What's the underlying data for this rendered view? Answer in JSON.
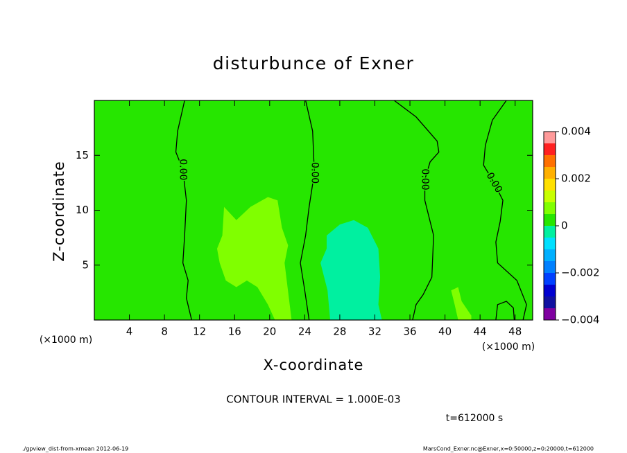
{
  "chart_data": {
    "type": "contour",
    "title": "disturbunce of Exner",
    "x_label": "X-coordinate",
    "y_label": "Z-coordinate",
    "x_unit_label": "(×1000 m)",
    "xlim": [
      0,
      50
    ],
    "ylim": [
      0,
      20
    ],
    "xticks": [
      4,
      8,
      12,
      16,
      20,
      24,
      28,
      32,
      36,
      40,
      44,
      48
    ],
    "yticks": [
      5,
      10,
      15
    ],
    "colorbar": {
      "levels": [
        -0.004,
        -0.0035,
        -0.003,
        -0.0025,
        -0.002,
        -0.0015,
        -0.001,
        -0.0005,
        0,
        0.0005,
        0.001,
        0.0015,
        0.002,
        0.0025,
        0.003,
        0.0035,
        0.004
      ],
      "colors": [
        "#7f00a0",
        "#1010a0",
        "#0000d0",
        "#0040ff",
        "#0080ff",
        "#00b0ff",
        "#00e0ff",
        "#00f0a0",
        "#26e600",
        "#80ff00",
        "#c8ff00",
        "#ffe000",
        "#ffb000",
        "#ff7000",
        "#ff2020",
        "#ff9a9a"
      ],
      "ticks": [
        {
          "value": -0.004,
          "label": "−0.004"
        },
        {
          "value": -0.002,
          "label": "−0.002"
        },
        0,
        0.002,
        0.004
      ]
    },
    "regions": [
      {
        "min": 0,
        "max": 0.0005,
        "x": [
          0,
          50,
          50,
          0
        ],
        "y": [
          0,
          0,
          20,
          20
        ]
      },
      {
        "min": 0.0005,
        "max": 0.001,
        "x": [
          14.8,
          16.2,
          17.8,
          19.8,
          20.9,
          21.4,
          22.1,
          21.7,
          22.5,
          20.6,
          19.8,
          18.6,
          17.4,
          16.2,
          15.0,
          14.3,
          14.0,
          14.6
        ],
        "y": [
          10.3,
          9.1,
          10.3,
          11.2,
          10.9,
          8.4,
          6.8,
          5.2,
          0,
          0,
          1.4,
          3.0,
          3.6,
          3.0,
          3.6,
          5.2,
          6.5,
          7.7
        ]
      },
      {
        "min": -0.0005,
        "max": 0,
        "x": [
          26.5,
          28.0,
          29.6,
          31.2,
          32.4,
          32.6,
          32.4,
          32.8,
          26.9,
          26.6,
          25.8,
          26.5
        ],
        "y": [
          7.7,
          8.7,
          9.1,
          8.4,
          6.5,
          3.9,
          1.4,
          0,
          0,
          2.7,
          5.2,
          6.5
        ]
      },
      {
        "min": 0.0005,
        "max": 0.001,
        "x": [
          40.7,
          41.5,
          41.9,
          43.0,
          43.0,
          41.5,
          41.1
        ],
        "y": [
          2.7,
          3.0,
          1.7,
          0.4,
          0,
          0,
          1.4
        ]
      }
    ],
    "contours": [
      {
        "label": "0.00",
        "x": [
          10.3,
          9.5,
          9.3,
          10.1,
          10.5,
          10.3,
          10.1,
          10.7,
          10.5,
          11.1
        ],
        "y": [
          20,
          17.2,
          15.3,
          13.7,
          10.9,
          7.7,
          5.2,
          3.6,
          2.0,
          0
        ]
      },
      {
        "label": "0.00",
        "x": [
          24.1,
          24.9,
          25.1,
          24.5,
          24.1,
          23.5,
          24.0,
          24.5
        ],
        "y": [
          20,
          17.2,
          13.4,
          10.3,
          7.7,
          5.2,
          2.7,
          0
        ]
      },
      {
        "label": "0.00",
        "x": [
          34.2,
          36.7,
          39.1,
          39.3,
          38.3,
          37.7,
          37.7,
          38.7,
          38.5,
          37.5,
          36.7,
          36.3
        ],
        "y": [
          20,
          18.5,
          16.3,
          15.3,
          14.4,
          12.8,
          10.9,
          7.7,
          3.9,
          2.3,
          1.4,
          0
        ]
      },
      {
        "label": "0.00",
        "x": [
          47.0,
          45.4,
          44.6,
          44.4,
          45.6,
          46.6,
          46.3,
          45.8,
          46.0,
          48.2,
          49.3,
          48.9
        ],
        "y": [
          20,
          18.2,
          15.9,
          14.1,
          12.5,
          10.9,
          9.0,
          7.1,
          5.2,
          3.6,
          1.4,
          0
        ]
      },
      {
        "x": [
          45.8,
          46.0,
          47.0,
          47.8,
          47.9
        ],
        "y": [
          0,
          1.4,
          1.7,
          1.1,
          0
        ]
      }
    ],
    "contour_interval": "CONTOUR INTERVAL = 1.000E-03",
    "time_label": "t=612000 s",
    "footer_left": "./gpview_dist-from-xmean  2012-06-19",
    "footer_right": "MarsCond_Exner.nc@Exner,x=0:50000,z=0:20000,t=612000"
  }
}
